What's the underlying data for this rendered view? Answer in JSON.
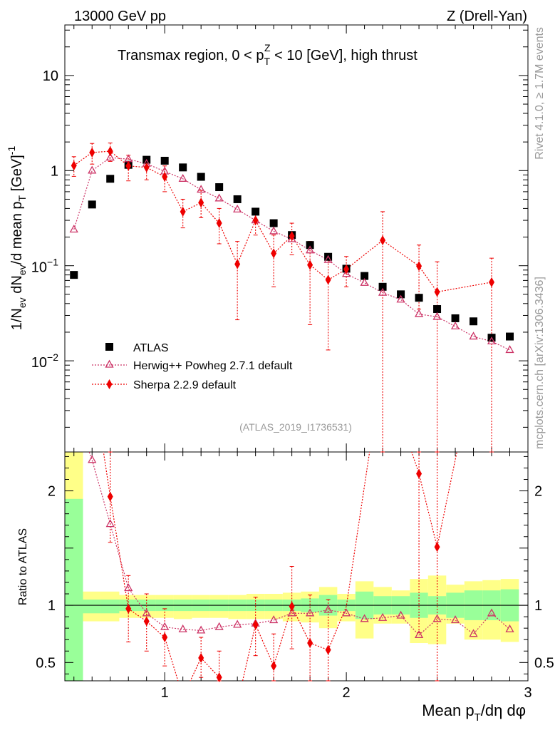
{
  "header": {
    "left": "13000 GeV pp",
    "right": "Z (Drell-Yan)"
  },
  "side": {
    "rivet": "Rivet 4.1.0, ≥ 1.7M events",
    "mcplots": "mcplots.cern.ch [arXiv:1306.3436]"
  },
  "analysis_id": "(ATLAS_2019_I1736531)",
  "chart_data": [
    {
      "type": "scatter",
      "panel": "main",
      "title": "Transmax region, 0 < p_T^Z < 10 [GeV], high thrust",
      "title_parts": {
        "a": "Transmax region, 0 < p",
        "b": "T",
        "c": "Z",
        "d": " < 10 [GeV], high thrust"
      },
      "ylabel": "1/N_ev dN_ev/d mean p_T [GeV]^-1",
      "ylabel_parts": {
        "a": "1/N",
        "b": "ev",
        "c": " dN",
        "d": "ev",
        "e": "/d mean p",
        "f": "T",
        "g": " [GeV]",
        "h": "-1"
      },
      "yscale": "log",
      "ylim": [
        0.0011,
        34
      ],
      "y_ticks": [
        {
          "v": 10,
          "label": "10"
        },
        {
          "v": 1,
          "label": "1"
        }
      ],
      "y_ticks_pow": [
        {
          "v": 0.1,
          "base": "10",
          "exp": "−1"
        },
        {
          "v": 0.01,
          "base": "10",
          "exp": "−2"
        }
      ],
      "xlim": [
        0.45,
        3.0
      ],
      "legend": {
        "position": "bottom-left",
        "entries": [
          "ATLAS",
          "Herwig++ Powheg 2.7.1 default",
          "Sherpa 2.2.9 default"
        ]
      },
      "series": [
        {
          "name": "ATLAS",
          "color": "#000000",
          "marker": "square",
          "x": [
            0.5,
            0.6,
            0.7,
            0.8,
            0.9,
            1.0,
            1.1,
            1.2,
            1.3,
            1.4,
            1.5,
            1.6,
            1.7,
            1.8,
            1.9,
            2.0,
            2.1,
            2.2,
            2.3,
            2.4,
            2.5,
            2.6,
            2.7,
            2.8,
            2.9
          ],
          "y": [
            0.08,
            0.44,
            0.82,
            1.15,
            1.3,
            1.27,
            1.08,
            0.86,
            0.67,
            0.5,
            0.37,
            0.28,
            0.21,
            0.165,
            0.124,
            0.093,
            0.078,
            0.06,
            0.05,
            0.046,
            0.035,
            0.028,
            0.026,
            0.0175,
            0.018
          ]
        },
        {
          "name": "Herwig++ Powheg 2.7.1 default",
          "color": "#cc3366",
          "marker": "open-triangle",
          "x": [
            0.5,
            0.6,
            0.7,
            0.8,
            0.9,
            1.0,
            1.1,
            1.2,
            1.3,
            1.4,
            1.5,
            1.6,
            1.7,
            1.8,
            1.9,
            2.0,
            2.1,
            2.2,
            2.3,
            2.4,
            2.5,
            2.6,
            2.7,
            2.8,
            2.9
          ],
          "y": [
            0.24,
            1.0,
            1.37,
            1.32,
            1.18,
            0.98,
            0.82,
            0.63,
            0.51,
            0.39,
            0.3,
            0.23,
            0.19,
            0.145,
            0.115,
            0.082,
            0.066,
            0.052,
            0.044,
            0.031,
            0.029,
            0.023,
            0.018,
            0.016,
            0.013
          ]
        },
        {
          "name": "Sherpa 2.2.9 default",
          "color": "#ee0000",
          "marker": "diamond",
          "x": [
            0.5,
            0.6,
            0.7,
            0.8,
            0.9,
            1.0,
            1.1,
            1.2,
            1.3,
            1.4,
            1.5,
            1.6,
            1.7,
            1.8,
            1.9,
            2.0,
            2.2,
            2.4,
            2.5,
            2.8
          ],
          "y": [
            1.13,
            1.55,
            1.6,
            1.12,
            1.08,
            0.86,
            0.37,
            0.46,
            0.28,
            0.104,
            0.3,
            0.135,
            0.205,
            0.102,
            0.071,
            0.092,
            0.185,
            0.099,
            0.053,
            0.067
          ],
          "err_lo": [
            0.87,
            1.17,
            1.25,
            0.78,
            0.8,
            0.6,
            0.25,
            0.32,
            0.17,
            0.027,
            0.21,
            0.06,
            0.13,
            0.024,
            0.013,
            0.06,
            0.0008,
            0.035,
            0.0008,
            0.0008
          ],
          "err_hi": [
            1.4,
            1.93,
            1.95,
            1.45,
            1.36,
            1.12,
            0.5,
            0.62,
            0.4,
            0.18,
            0.39,
            0.21,
            0.28,
            0.18,
            0.13,
            0.125,
            0.37,
            0.165,
            0.11,
            0.12
          ]
        }
      ]
    },
    {
      "type": "scatter",
      "panel": "ratio",
      "ylabel": "Ratio to ATLAS",
      "xlabel": "Mean p_T/dη dφ",
      "xlabel_parts": {
        "a": "Mean p",
        "b": "T",
        "c": "/dη dφ"
      },
      "xlim": [
        0.45,
        3.0
      ],
      "ylim": [
        0.34,
        2.34
      ],
      "x_ticks": [
        {
          "v": 1,
          "label": "1"
        },
        {
          "v": 2,
          "label": "2"
        },
        {
          "v": 3,
          "label": "3"
        }
      ],
      "y_ticks": [
        {
          "v": 0.5,
          "label": "0.5"
        },
        {
          "v": 1,
          "label": "1"
        },
        {
          "v": 2,
          "label": "2"
        }
      ],
      "bands": {
        "x_edges": [
          0.45,
          0.55,
          0.65,
          0.75,
          0.85,
          0.95,
          1.05,
          1.15,
          1.25,
          1.35,
          1.45,
          1.55,
          1.65,
          1.75,
          1.85,
          1.95,
          2.05,
          2.15,
          2.25,
          2.35,
          2.45,
          2.55,
          2.65,
          2.75,
          2.85,
          2.95
        ],
        "green_lo": [
          0.33,
          0.93,
          0.93,
          0.95,
          0.95,
          0.95,
          0.95,
          0.95,
          0.95,
          0.95,
          0.95,
          0.95,
          0.95,
          0.94,
          0.91,
          0.95,
          0.88,
          0.92,
          0.92,
          0.89,
          0.92,
          0.89,
          0.87,
          0.87,
          0.86
        ],
        "green_hi": [
          1.93,
          1.05,
          1.05,
          1.05,
          1.05,
          1.05,
          1.05,
          1.05,
          1.05,
          1.05,
          1.05,
          1.05,
          1.05,
          1.06,
          1.09,
          1.05,
          1.12,
          1.08,
          1.08,
          1.11,
          1.08,
          1.11,
          1.13,
          1.13,
          1.14
        ],
        "yellow_lo": [
          0.33,
          0.86,
          0.86,
          0.89,
          0.89,
          0.89,
          0.88,
          0.89,
          0.89,
          0.88,
          0.88,
          0.88,
          0.86,
          0.85,
          0.8,
          0.86,
          0.71,
          0.84,
          0.84,
          0.67,
          0.66,
          0.84,
          0.7,
          0.7,
          0.68
        ],
        "yellow_hi": [
          2.34,
          1.12,
          1.12,
          1.09,
          1.09,
          1.09,
          1.09,
          1.09,
          1.09,
          1.09,
          1.1,
          1.1,
          1.11,
          1.12,
          1.16,
          1.1,
          1.21,
          1.16,
          1.13,
          1.23,
          1.26,
          1.18,
          1.21,
          1.22,
          1.23
        ]
      },
      "series": [
        {
          "name": "Herwig++ Powheg 2.7.1 default",
          "color": "#cc3366",
          "marker": "open-triangle",
          "x": [
            0.6,
            0.7,
            0.8,
            0.9,
            1.0,
            1.1,
            1.2,
            1.3,
            1.4,
            1.5,
            1.6,
            1.7,
            1.8,
            1.9,
            2.0,
            2.1,
            2.2,
            2.3,
            2.4,
            2.5,
            2.6,
            2.7,
            2.8,
            2.9
          ],
          "y": [
            2.27,
            1.71,
            1.15,
            0.93,
            0.81,
            0.79,
            0.78,
            0.81,
            0.83,
            0.84,
            0.87,
            0.93,
            0.93,
            0.96,
            0.93,
            0.88,
            0.89,
            0.91,
            0.74,
            0.88,
            0.87,
            0.75,
            0.93,
            0.79
          ]
        },
        {
          "name": "Sherpa 2.2.9 default",
          "color": "#ee0000",
          "marker": "diamond",
          "x": [
            0.7,
            0.8,
            0.9,
            1.0,
            1.2,
            1.3,
            1.5,
            1.6,
            1.7,
            1.8,
            1.9,
            2.4,
            2.5
          ],
          "y": [
            1.95,
            0.97,
            0.86,
            0.72,
            0.54,
            0.37,
            0.83,
            0.47,
            0.99,
            0.67,
            0.61,
            2.15,
            1.51
          ],
          "err_lo": [
            1.55,
            0.68,
            0.6,
            0.47,
            0.37,
            0.25,
            0.56,
            0.21,
            0.62,
            0.15,
            0.11,
            0.76,
            0.02
          ],
          "err_hi": [
            2.35,
            1.26,
            1.1,
            0.97,
            0.72,
            0.6,
            1.07,
            0.75,
            1.34,
            1.09,
            1.05,
            3.5,
            3.1
          ]
        }
      ]
    }
  ]
}
